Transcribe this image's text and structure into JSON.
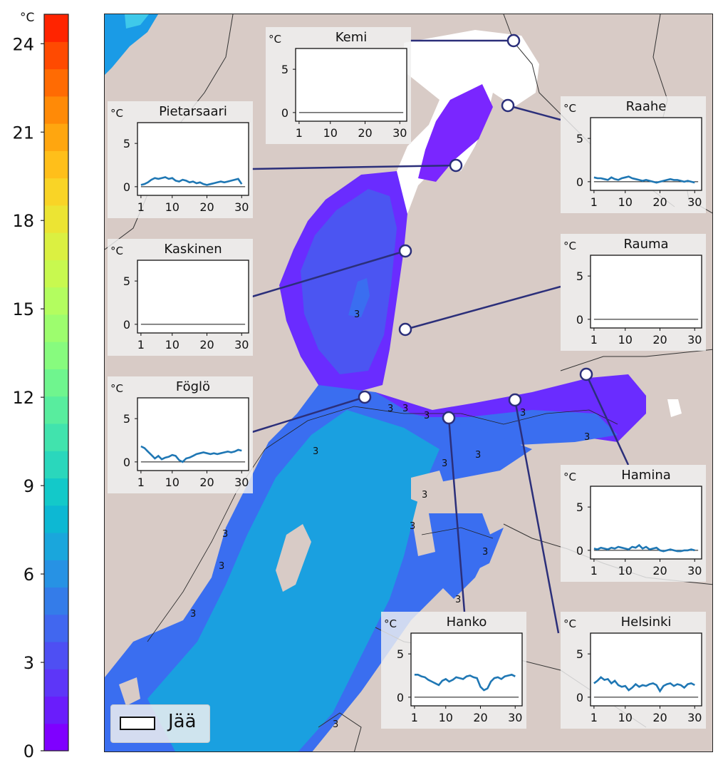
{
  "colorbar": {
    "unit": "°C",
    "ticks": [
      "24",
      "21",
      "18",
      "15",
      "12",
      "9",
      "6",
      "3",
      "0"
    ],
    "vmin": 0,
    "vmax": 25,
    "colors": [
      "#7f00ff",
      "#6a1dfb",
      "#5d36f8",
      "#4e4ff3",
      "#4167ef",
      "#347ce9",
      "#2792e4",
      "#1aa6dc",
      "#0db8d3",
      "#13c9c9",
      "#2ad7bc",
      "#41e3ad",
      "#58ed9e",
      "#6ff58e",
      "#87fb7e",
      "#9dfd6e",
      "#b3fd5f",
      "#c8f94f",
      "#dbf041",
      "#ece433",
      "#f9d426",
      "#ffbf1a",
      "#ffa60f",
      "#ff8a07",
      "#ff6b03",
      "#ff4a01",
      "#ff2400"
    ]
  },
  "legend": {
    "label": "Jää"
  },
  "map": {
    "contour_label": "3",
    "colors": {
      "land": "#d8cbc6",
      "ice": "#ffffff",
      "sea_shallow": "#1aa0e0",
      "sea_mid": "#3a6ef0",
      "sea_cold": "#5a3af5",
      "sea_coldest": "#7720ff",
      "norway_sea": "#1a9be6",
      "line": "#2b2f7a",
      "border": "#333333"
    }
  },
  "stations": [
    {
      "name": "Kemi",
      "unit": "°C",
      "yticks": [
        "5",
        "0"
      ],
      "xticks": [
        "1",
        "10",
        "20",
        "30"
      ],
      "series": []
    },
    {
      "name": "Raahe",
      "unit": "°C",
      "yticks": [
        "5",
        "0"
      ],
      "xticks": [
        "1",
        "10",
        "20",
        "30"
      ],
      "series": [
        0.5,
        0.4,
        0.4,
        0.3,
        0.2,
        0.5,
        0.3,
        0.2,
        0.4,
        0.5,
        0.6,
        0.4,
        0.3,
        0.2,
        0.1,
        0.2,
        0.1,
        0.0,
        -0.1,
        0.0,
        0.1,
        0.2,
        0.3,
        0.2,
        0.2,
        0.1,
        0.0,
        0.1,
        0.0,
        -0.1
      ]
    },
    {
      "name": "Pietarsaari",
      "unit": "°C",
      "yticks": [
        "5",
        "0"
      ],
      "xticks": [
        "1",
        "10",
        "20",
        "30"
      ],
      "series": [
        0.2,
        0.3,
        0.5,
        0.8,
        1.0,
        0.9,
        1.0,
        1.1,
        0.9,
        1.0,
        0.7,
        0.6,
        0.8,
        0.7,
        0.5,
        0.6,
        0.4,
        0.5,
        0.3,
        0.2,
        0.3,
        0.4,
        0.5,
        0.6,
        0.5,
        0.6,
        0.7,
        0.8,
        0.9,
        0.3
      ]
    },
    {
      "name": "Kaskinen",
      "unit": "°C",
      "yticks": [
        "5",
        "0"
      ],
      "xticks": [
        "1",
        "10",
        "20",
        "30"
      ],
      "series": []
    },
    {
      "name": "Rauma",
      "unit": "°C",
      "yticks": [
        "5",
        "0"
      ],
      "xticks": [
        "1",
        "10",
        "20",
        "30"
      ],
      "series": []
    },
    {
      "name": "Föglö",
      "unit": "°C",
      "yticks": [
        "5",
        "0"
      ],
      "xticks": [
        "1",
        "10",
        "20",
        "30"
      ],
      "series": [
        1.8,
        1.6,
        1.2,
        0.8,
        0.4,
        0.7,
        0.3,
        0.5,
        0.6,
        0.8,
        0.7,
        0.2,
        0.0,
        0.4,
        0.5,
        0.7,
        0.9,
        1.0,
        1.1,
        1.0,
        0.9,
        1.0,
        0.9,
        1.0,
        1.1,
        1.2,
        1.1,
        1.2,
        1.4,
        1.3
      ]
    },
    {
      "name": "Hamina",
      "unit": "°C",
      "yticks": [
        "5",
        "0"
      ],
      "xticks": [
        "1",
        "10",
        "20",
        "30"
      ],
      "series": [
        0.2,
        0.1,
        0.3,
        0.2,
        0.1,
        0.3,
        0.2,
        0.4,
        0.3,
        0.2,
        0.1,
        0.4,
        0.3,
        0.6,
        0.2,
        0.4,
        0.1,
        0.2,
        0.3,
        0.0,
        -0.1,
        0.0,
        0.1,
        0.0,
        -0.1,
        -0.1,
        0.0,
        0.0,
        0.1,
        0.0
      ]
    },
    {
      "name": "Hanko",
      "unit": "°C",
      "yticks": [
        "5",
        "0"
      ],
      "xticks": [
        "1",
        "10",
        "20",
        "30"
      ],
      "series": [
        2.6,
        2.6,
        2.4,
        2.3,
        2.0,
        1.8,
        1.6,
        1.4,
        1.9,
        2.1,
        1.8,
        2.0,
        2.3,
        2.2,
        2.1,
        2.4,
        2.5,
        2.3,
        2.2,
        1.2,
        0.8,
        1.0,
        1.8,
        2.2,
        2.3,
        2.1,
        2.4,
        2.5,
        2.6,
        2.4
      ]
    },
    {
      "name": "Helsinki",
      "unit": "°C",
      "yticks": [
        "5",
        "0"
      ],
      "xticks": [
        "1",
        "10",
        "20",
        "30"
      ],
      "series": [
        1.6,
        1.9,
        2.3,
        2.0,
        2.1,
        1.6,
        1.9,
        1.4,
        1.2,
        1.3,
        0.8,
        1.1,
        1.5,
        1.2,
        1.4,
        1.3,
        1.5,
        1.6,
        1.4,
        0.7,
        1.3,
        1.5,
        1.6,
        1.3,
        1.5,
        1.4,
        1.1,
        1.5,
        1.6,
        1.4
      ]
    }
  ]
}
